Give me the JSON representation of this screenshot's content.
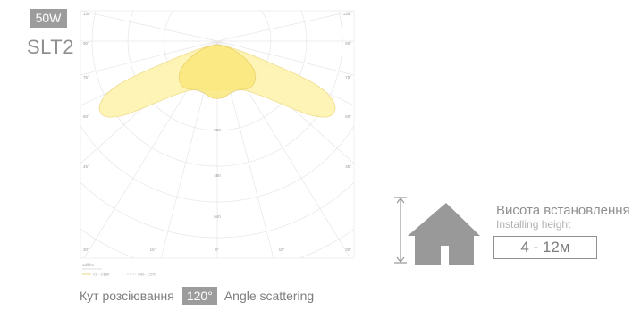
{
  "product": {
    "power": "50W",
    "model": "SLT2"
  },
  "diagram": {
    "polar_labels_left": [
      "135°",
      "90°",
      "75°",
      "60°",
      "45°",
      "30°"
    ],
    "polar_labels_right": [
      "135°",
      "90°",
      "75°",
      "60°",
      "45°",
      "30°"
    ],
    "bottom_angle_labels": [
      "30°",
      "15°",
      "0°",
      "15°",
      "30°"
    ],
    "radial_values": [
      "320",
      "480",
      "640"
    ],
    "unit": "cd/klm",
    "legend": [
      "C0 - C180",
      "C90 - C270"
    ]
  },
  "scattering": {
    "label_uk": "Кут розсіювання",
    "angle": "120°",
    "label_en": "Angle scattering"
  },
  "installation": {
    "title": "Висота встановлення",
    "subtitle": "Installing height",
    "value": "4 - 12м"
  },
  "colors": {
    "badge": "#9c9c9c",
    "house": "#999999",
    "beam_fill": "#fdf2a0",
    "beam_inner": "#fbe978"
  }
}
